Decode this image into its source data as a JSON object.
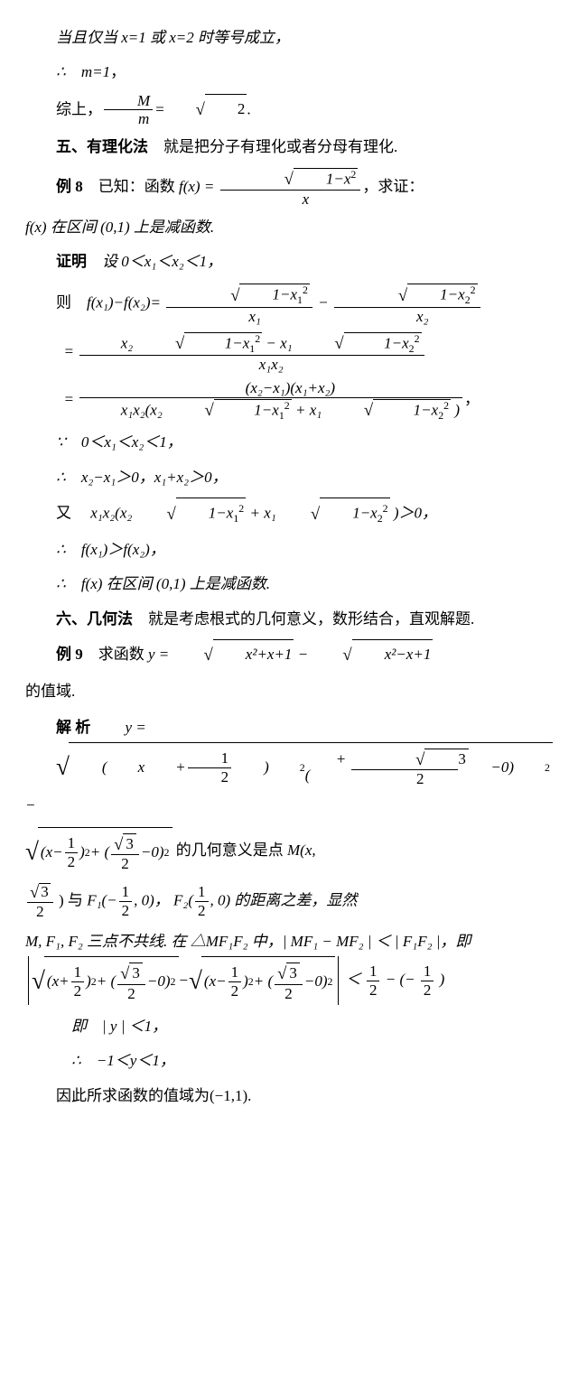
{
  "p1": "当且仅当 x=1 或 x=2 时等号成立，",
  "p2_pre": "∴　m=1",
  "p2_post": "，",
  "p3_pre": "综上，",
  "p3_frac_num": "M",
  "p3_frac_den": "m",
  "p3_mid": "=",
  "p3_sqrt": "2",
  "p3_post": ".",
  "sec5_head": "五、有理化法",
  "sec5_body": "　就是把分子有理化或者分母有理化.",
  "ex8_head": "例 8",
  "ex8_body1": "　已知：函数 ",
  "ex8_fx": "f(x)",
  "ex8_eq": " = ",
  "ex8_num_sqrt": "1−x",
  "ex8_num_exp": "2",
  "ex8_den": "x",
  "ex8_body2": "，求证：",
  "ex8_line2": "f(x) 在区间 (0,1) 上是减函数.",
  "proof_head": "证明",
  "proof_body": "　设 0＜x₁＜x₂＜1，",
  "then": "则　",
  "fdiff_lhs": "f(x₁)−f(x₂)=",
  "num1_rad": "1−x",
  "num1_sub": "1",
  "num1_exp": "2",
  "den1": "x₁",
  "minus": " − ",
  "num2_rad": "1−x",
  "num2_sub": "2",
  "num2_exp": "2",
  "den2": "x₂",
  "step2_num_a": "x₂",
  "step2_num_rad1": "1−x",
  "step2_num_rad1_sub": "1",
  "step2_num_rad1_exp": "2",
  "step2_num_minus": " − ",
  "step2_num_b": "x₁",
  "step2_num_rad2": "1−x",
  "step2_num_rad2_sub": "2",
  "step2_num_rad2_exp": "2",
  "step2_den": "x₁x₂",
  "step3_num": "(x₂−x₁)(x₁+x₂)",
  "step3_den_a": "x₁x₂(x₂",
  "step3_den_rad1": "1−x",
  "step3_den_rad1_sub": "1",
  "step3_den_rad1_exp": "2",
  "step3_den_plus": " + x₁",
  "step3_den_rad2": "1−x",
  "step3_den_rad2_sub": "2",
  "step3_den_rad2_exp": "2",
  "step3_den_close": ")",
  "step3_end": "，",
  "because1": "∵　0＜x₁＜x₂＜1，",
  "therefore1": "∴　x₂−x₁＞0，x₁+x₂＞0，",
  "also_pre": "又　",
  "also_a": "x₁x₂(x₂",
  "also_rad1": "1−x",
  "also_rad1_sub": "1",
  "also_rad1_exp": "2",
  "also_plus": " + x₁",
  "also_rad2": "1−x",
  "also_rad2_sub": "2",
  "also_rad2_exp": "2",
  "also_close": ")＞0，",
  "therefore2": "∴　f(x₁)＞f(x₂)，",
  "therefore3": "∴　f(x) 在区间 (0,1) 上是减函数.",
  "sec6_head": "六、几何法",
  "sec6_body": "　就是考虑根式的几何意义，数形结合，直观解题.",
  "ex9_head": "例 9",
  "ex9_body1": "　求函数 ",
  "ex9_y": "y = ",
  "ex9_rad1": "x²+x+1",
  "ex9_minus": " − ",
  "ex9_rad2": "x²−x+1",
  "ex9_body2": "的值域.",
  "sol_head": "解 析",
  "sol_y": "y = ",
  "bigrad_a_num": "1",
  "bigrad_a_den": "2",
  "bigrad_b_num": "3",
  "bigrad_b_den": "2",
  "sol_minus": " − ",
  "sol_text1_a": " 的几何意义是点 ",
  "sol_text1_b": "M(x,",
  "sol_text2_a": ") 与 ",
  "sol_F1_pre": "F₁(−",
  "sol_F1_post": ", 0)，",
  "sol_F2_pre": "F₂(",
  "sol_F2_post": ", 0) 的距离之差，显然 ",
  "sol_text3": "M, F₁, F₂ 三点不共线. 在 △MF₁F₂ 中，| MF₁ − MF₂ | ＜ | F₁F₂ |，即",
  "sol_lt": " ＜",
  "sol_rhs_minus": " − (−",
  "sol_rhs_close": ")",
  "ie1": "即　| y | ＜1，",
  "ie2": "∴　−1＜y＜1，",
  "conc": "因此所求函数的值域为(−1,1)."
}
